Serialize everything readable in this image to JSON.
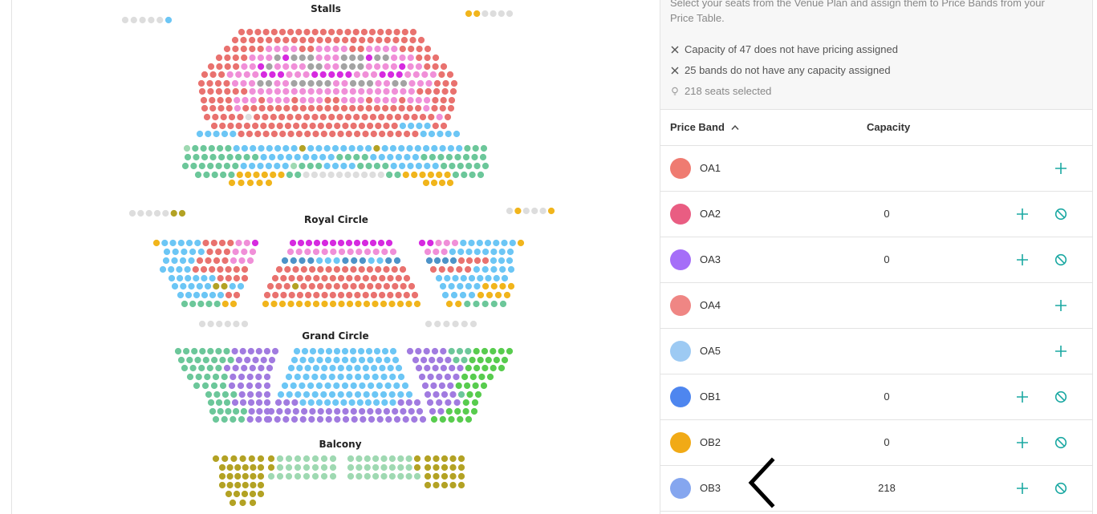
{
  "venue_plan": {
    "sections": [
      {
        "name": "Stalls"
      },
      {
        "name": "Royal Circle"
      },
      {
        "name": "Grand Circle"
      },
      {
        "name": "Balcony"
      }
    ],
    "colors": {
      "salmon": "#e9726f",
      "pink": "#f08fd8",
      "magenta": "#d62ae0",
      "grey": "#a3a3a3",
      "light_grey": "#dddddd",
      "light_blue": "#6cc6f5",
      "teal_green": "#6cc79a",
      "gold": "#f1b51c",
      "purple": "#a17be0",
      "green": "#58cc4e",
      "olive": "#b3a224",
      "steel_blue": "#4d93c8",
      "pale_green": "#9fd9b2"
    }
  },
  "panel": {
    "instructions": "Select your seats from the Venue Plan and assign them to Price Bands from your Price Table.",
    "status": [
      {
        "icon": "close-icon",
        "text": "Capacity of 47 does not have pricing assigned"
      },
      {
        "icon": "close-icon",
        "text": "25 bands do not have any capacity assigned"
      },
      {
        "icon": "lightbulb-icon",
        "text": "218 seats selected"
      }
    ],
    "table": {
      "header_band": "Price Band",
      "header_capacity": "Capacity",
      "rows": [
        {
          "name": "OA1",
          "color": "#ef7b71",
          "capacity": "",
          "can_clear": false
        },
        {
          "name": "OA2",
          "color": "#e95d82",
          "capacity": "0",
          "can_clear": true
        },
        {
          "name": "OA3",
          "color": "#a56ef8",
          "capacity": "0",
          "can_clear": true
        },
        {
          "name": "OA4",
          "color": "#ef8684",
          "capacity": "",
          "can_clear": false
        },
        {
          "name": "OA5",
          "color": "#9dcaf3",
          "capacity": "",
          "can_clear": false
        },
        {
          "name": "OB1",
          "color": "#4e86ef",
          "capacity": "0",
          "can_clear": true
        },
        {
          "name": "OB2",
          "color": "#f1aa16",
          "capacity": "0",
          "can_clear": true
        },
        {
          "name": "OB3",
          "color": "#85a6ef",
          "capacity": "218",
          "can_clear": true
        }
      ]
    }
  }
}
